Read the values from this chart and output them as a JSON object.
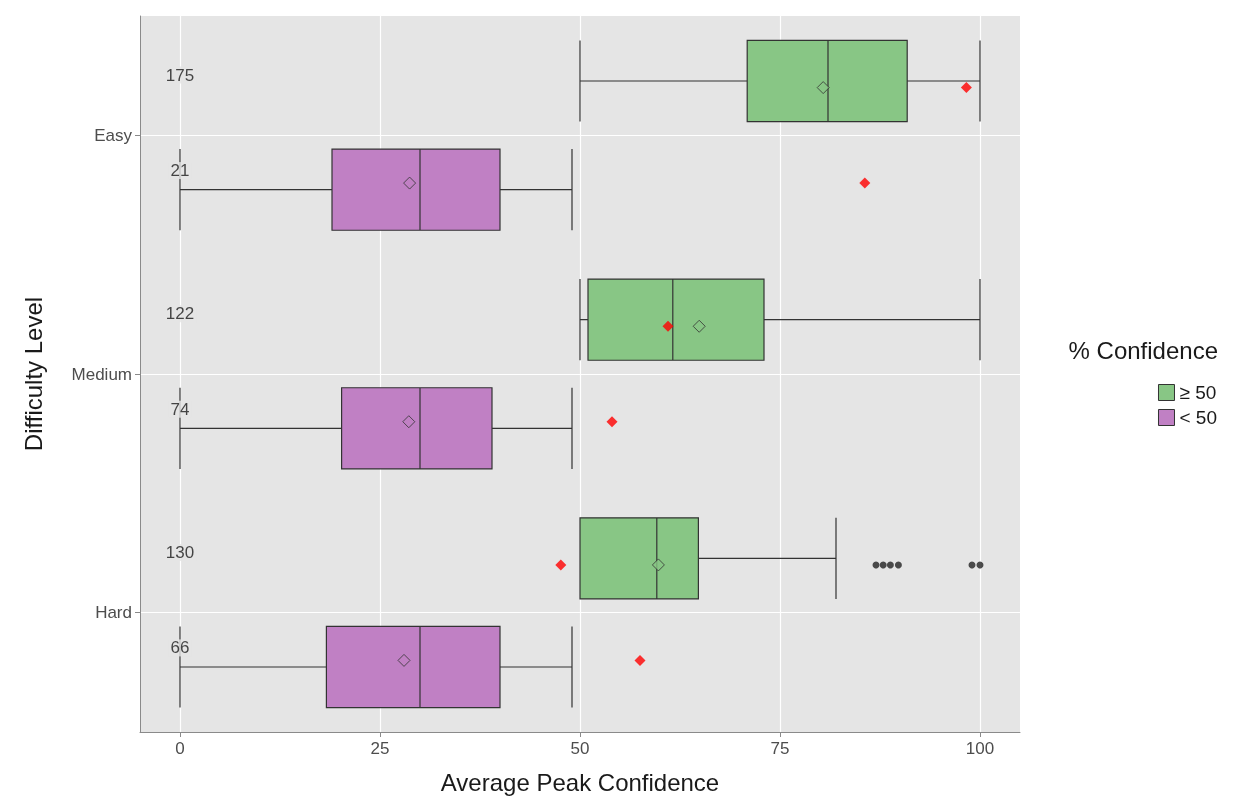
{
  "chart_data": {
    "type": "box",
    "orientation": "horizontal",
    "xlabel": "Average Peak Confidence",
    "ylabel": "Difficulty Level",
    "legend_title": "% Confidence",
    "legend": "right",
    "grid": true,
    "categories": [
      "Easy",
      "Medium",
      "Hard"
    ],
    "xlim": [
      -5,
      105
    ],
    "xticks": [
      0,
      25,
      50,
      75,
      100
    ],
    "series": [
      {
        "name": "≥ 50",
        "color": "#88c685",
        "value_labels": [
          "175",
          "122",
          "130"
        ],
        "boxes": [
          {
            "low": 50,
            "q1": 70.9,
            "median": 81,
            "q3": 90.9,
            "high": 100,
            "mean": 80.4
          },
          {
            "low": 50,
            "q1": 51,
            "median": 61.6,
            "q3": 73,
            "high": 100,
            "mean": 64.9
          },
          {
            "low": 50,
            "q1": 50,
            "median": 59.6,
            "q3": 64.8,
            "high": 82,
            "mean": 59.8,
            "outliers": [
              87,
              87.9,
              88.8,
              89.8,
              99,
              100
            ]
          }
        ]
      },
      {
        "name": "< 50",
        "color": "#c080c4",
        "value_labels": [
          "21",
          "74",
          "66"
        ],
        "boxes": [
          {
            "low": 0,
            "q1": 19,
            "median": 30,
            "q3": 40,
            "high": 49,
            "mean": 28.7
          },
          {
            "low": 0,
            "q1": 20.2,
            "median": 30,
            "q3": 39,
            "high": 49,
            "mean": 28.6
          },
          {
            "low": 0,
            "q1": 18.3,
            "median": 30,
            "q3": 40,
            "high": 49,
            "mean": 28
          }
        ]
      },
      {
        "type": "scatter",
        "color": "#ff0000",
        "marker": "diamond",
        "x": [
          "Easy",
          "Medium",
          "Hard"
        ],
        "values": [
          98.3,
          61,
          47.6
        ]
      },
      {
        "type": "scatter",
        "color": "#ff0000",
        "marker": "diamond",
        "x": [
          "Easy",
          "Medium",
          "Hard"
        ],
        "values": [
          85.6,
          54,
          57.5
        ]
      }
    ]
  }
}
